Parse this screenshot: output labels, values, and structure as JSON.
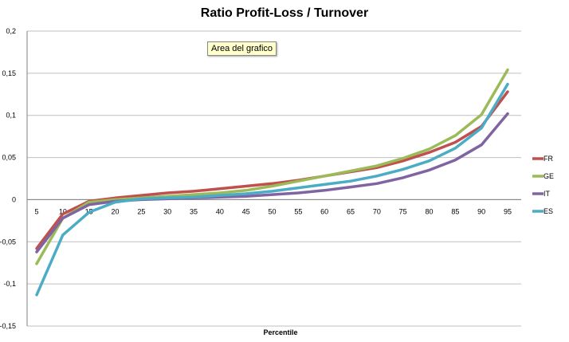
{
  "chart_data": {
    "type": "line",
    "title": "Ratio Profit-Loss / Turnover",
    "xlabel": "Percentile",
    "ylabel": "",
    "ylim": [
      -0.15,
      0.2
    ],
    "yticks": [
      0.2,
      0.15,
      0.1,
      0.05,
      0,
      -0.05,
      -0.1,
      -0.15
    ],
    "ytick_labels": [
      "0,2",
      "0,15",
      "0,1",
      "0,05",
      "0",
      "-0,05",
      "-0,1",
      "-0,15"
    ],
    "categories": [
      "5",
      "10",
      "15",
      "20",
      "25",
      "30",
      "35",
      "40",
      "45",
      "50",
      "55",
      "60",
      "65",
      "70",
      "75",
      "80",
      "85",
      "90",
      "95"
    ],
    "grid": true,
    "legend_position": "right",
    "series": [
      {
        "name": "FR",
        "color": "#c0504d",
        "values": [
          -0.058,
          -0.017,
          -0.002,
          0.002,
          0.005,
          0.008,
          0.01,
          0.013,
          0.016,
          0.019,
          0.023,
          0.028,
          0.033,
          0.038,
          0.046,
          0.056,
          0.068,
          0.087,
          0.128
        ]
      },
      {
        "name": "GE",
        "color": "#9bbb59",
        "values": [
          -0.076,
          -0.022,
          -0.003,
          0.0,
          0.002,
          0.004,
          0.006,
          0.008,
          0.011,
          0.016,
          0.022,
          0.028,
          0.034,
          0.04,
          0.049,
          0.06,
          0.076,
          0.101,
          0.154
        ]
      },
      {
        "name": "IT",
        "color": "#8064a2",
        "values": [
          -0.062,
          -0.022,
          -0.006,
          -0.002,
          0.0,
          0.001,
          0.002,
          0.003,
          0.004,
          0.006,
          0.008,
          0.011,
          0.015,
          0.019,
          0.026,
          0.035,
          0.047,
          0.065,
          0.102
        ]
      },
      {
        "name": "ES",
        "color": "#4bacc6",
        "values": [
          -0.113,
          -0.042,
          -0.015,
          -0.003,
          0.001,
          0.002,
          0.003,
          0.005,
          0.007,
          0.01,
          0.014,
          0.018,
          0.022,
          0.028,
          0.036,
          0.046,
          0.061,
          0.085,
          0.137
        ]
      }
    ]
  },
  "tooltip": {
    "text": "Area del grafico"
  }
}
